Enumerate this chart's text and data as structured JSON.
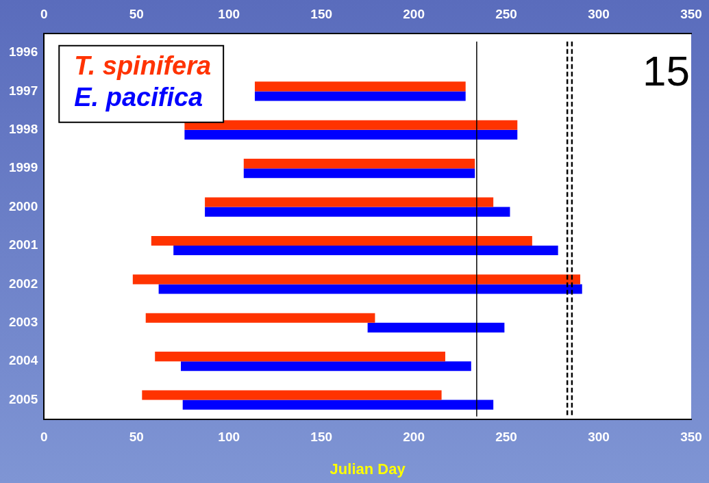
{
  "chart_data": {
    "type": "bar",
    "orientation": "horizontal",
    "xlabel": "Julian Day",
    "categories": [
      "1996",
      "1997",
      "1998",
      "1999",
      "2000",
      "2001",
      "2002",
      "2003",
      "2004",
      "2005"
    ],
    "series": [
      {
        "name": "T. spinifera",
        "color": "#ff3300",
        "base": [
          null,
          114,
          76,
          108,
          87,
          58,
          48,
          55,
          60,
          53
        ],
        "values": [
          null,
          114,
          180,
          125,
          156,
          206,
          242,
          124,
          157,
          162
        ]
      },
      {
        "name": "E. pacifica",
        "color": "#0000ff",
        "base": [
          null,
          114,
          76,
          108,
          87,
          70,
          62,
          175,
          74,
          75
        ],
        "values": [
          null,
          114,
          180,
          125,
          165,
          208,
          229,
          74,
          157,
          168
        ]
      }
    ],
    "xlim": [
      0,
      350
    ],
    "xticks": [
      0,
      50,
      100,
      150,
      200,
      250,
      300,
      350
    ],
    "x2lim": [
      0,
      350
    ],
    "x2ticks": [
      0,
      50,
      100,
      150,
      200,
      250,
      300,
      350
    ],
    "ref_lines": [
      {
        "axis": "x",
        "value": 234,
        "line_style": "solid",
        "color": "#000000"
      },
      {
        "axis": "x",
        "value": 283,
        "line_style": "dashed",
        "color": "#000000"
      },
      {
        "axis": "x",
        "value": 285.5,
        "line_style": "dashed",
        "color": "#000000"
      }
    ],
    "annotations": [
      "15"
    ],
    "grid": false,
    "legend": "top left"
  }
}
